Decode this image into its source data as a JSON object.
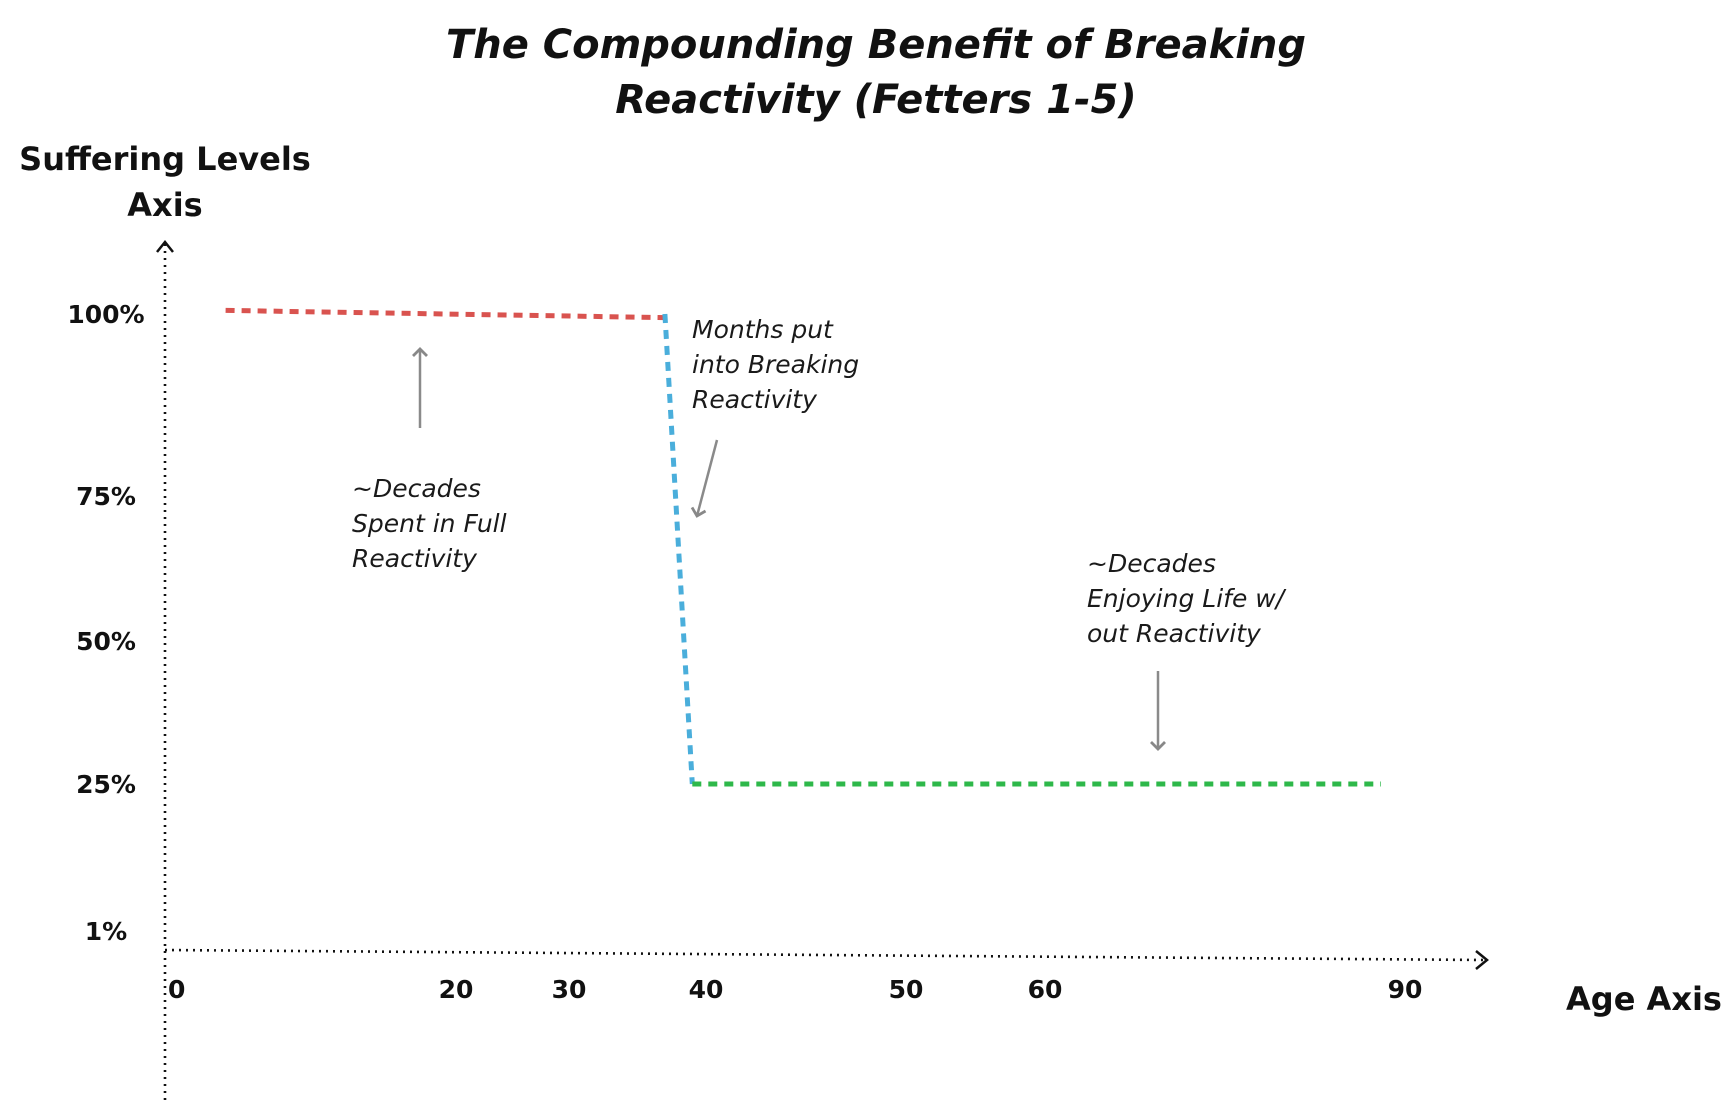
{
  "chart_data": {
    "type": "line",
    "title_lines": [
      "The Compounding Benefit of Breaking",
      "Reactivity (Fetters 1-5)"
    ],
    "ylabel_lines": [
      "Suffering Levels",
      "Axis"
    ],
    "xlabel": "Age Axis",
    "x_ticks": [
      {
        "value": 0,
        "label": "0"
      },
      {
        "value": 20,
        "label": "20"
      },
      {
        "value": 30,
        "label": "30"
      },
      {
        "value": 40,
        "label": "40"
      },
      {
        "value": 50,
        "label": "50"
      },
      {
        "value": 60,
        "label": "60"
      },
      {
        "value": 90,
        "label": "90"
      }
    ],
    "y_ticks": [
      {
        "value": 1,
        "label": "1%"
      },
      {
        "value": 25,
        "label": "25%"
      },
      {
        "value": 50,
        "label": "50%"
      },
      {
        "value": 75,
        "label": "75%"
      },
      {
        "value": 100,
        "label": "100%"
      }
    ],
    "series": [
      {
        "color": "#d9534f",
        "points": [
          [
            4,
            100.5
          ],
          [
            37,
            99.5
          ]
        ]
      },
      {
        "color": "#4aaedb",
        "points": [
          [
            37,
            100
          ],
          [
            39,
            25
          ]
        ]
      },
      {
        "color": "#2eb84a",
        "points": [
          [
            39,
            25
          ],
          [
            88,
            25
          ]
        ]
      }
    ],
    "annotations": [
      {
        "lines": [
          "~Decades",
          "Spent in Full",
          "Reactivity"
        ],
        "arrow": "up"
      },
      {
        "lines": [
          "Months put",
          "into Breaking",
          "Reactivity"
        ],
        "arrow": "down-left"
      },
      {
        "lines": [
          "~Decades",
          "Enjoying Life w/",
          "out Reactivity"
        ],
        "arrow": "down"
      }
    ],
    "grid": false,
    "legend": "none"
  }
}
